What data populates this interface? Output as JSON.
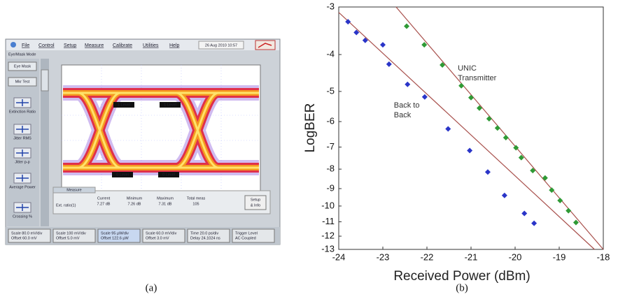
{
  "panel_labels": [
    "(a)",
    "(b)"
  ],
  "screenshot": {
    "menu": [
      "File",
      "Control",
      "Setup",
      "Measure",
      "Calibrate",
      "Utilities",
      "Help"
    ],
    "date": "26 Aug 2010 10:57",
    "mode": "Eye/Mask Mode",
    "side_buttons": [
      "Eye Mask",
      "Mkr Test"
    ],
    "measurements": [
      "Extinction Ratio",
      "Jitter RMS",
      "Jitter p-p",
      "Average Power",
      "Crossing %"
    ],
    "level_markers": [
      "1 Level",
      "1 Level",
      "0 Level",
      "0 Level"
    ],
    "measure_tab": "Measure",
    "measure_row": "Ext. ratio(1)",
    "measure_columns": [
      {
        "header": "Current",
        "value": "7.27 dB"
      },
      {
        "header": "Minimum",
        "value": "7.26 dB"
      },
      {
        "header": "Maximum",
        "value": "7.31 dB"
      },
      {
        "header": "Total meas",
        "value": "105"
      }
    ],
    "setup_button": [
      "Setup",
      "& Info"
    ],
    "status": [
      [
        "Scale 80.0 mV/div",
        "Offset 60.0 mV"
      ],
      [
        "Scale 100 mV/div",
        "Offset 5.0 mV"
      ],
      [
        "Scale 95 µW/div",
        "Offset 122.6 µW"
      ],
      [
        "Scale 60.0 mV/div",
        "Offset 3.0 mV"
      ],
      [
        "Time 20.0 ps/div",
        "Delay 24.1024 ns"
      ],
      [
        "Trigger Level",
        "AC Coupled"
      ]
    ]
  },
  "chart_data": {
    "type": "scatter",
    "x_label": "Received Power (dBm)",
    "y_label": "LogBER",
    "xlim": [
      -24,
      -18
    ],
    "xticks": [
      -24,
      -23,
      -22,
      -21,
      -20,
      -19,
      -18
    ],
    "ylim": [
      -3,
      -13
    ],
    "yticks": [
      -3,
      -4,
      -5,
      -6,
      -7,
      -8,
      -9,
      -10,
      -11,
      -12,
      -13
    ],
    "yscale": "log-magnitude",
    "series": [
      {
        "color": "#2a35c8",
        "x": [
          -23.79,
          -23.6,
          -23.4,
          -23.0,
          -22.86,
          -22.44,
          -22.05,
          -21.52,
          -21.03,
          -20.62,
          -20.24,
          -19.79,
          -19.57
        ],
        "values": [
          -3.28,
          -3.5,
          -3.67,
          -3.77,
          -4.24,
          -4.79,
          -5.17,
          -6.27,
          -7.15,
          -8.14,
          -9.38,
          -10.46,
          -11.1
        ]
      },
      {
        "color": "#2f9a35",
        "x": [
          -22.46,
          -22.06,
          -21.65,
          -21.22,
          -21.0,
          -20.81,
          -20.59,
          -20.4,
          -20.21,
          -19.98,
          -19.86,
          -19.6,
          -19.32,
          -19.17,
          -18.98,
          -18.79,
          -18.62
        ],
        "values": [
          -3.37,
          -3.77,
          -4.26,
          -4.83,
          -5.19,
          -5.53,
          -5.9,
          -6.24,
          -6.61,
          -7.03,
          -7.46,
          -8.07,
          -8.44,
          -9.08,
          -9.67,
          -10.29,
          -11.05
        ]
      }
    ],
    "trendlines": [
      {
        "color": "#a8504c",
        "x": [
          -24,
          -18.2
        ],
        "values": [
          -3.1,
          -13
        ]
      },
      {
        "color": "#a8504c",
        "x": [
          -22.7,
          -18
        ],
        "values": [
          -3,
          -13
        ]
      }
    ],
    "annotations": [
      {
        "lines": [
          "UNIC",
          "Transmitter"
        ],
        "x": -21.3,
        "y": -4.35
      },
      {
        "lines": [
          "Back to",
          "Back"
        ],
        "x": -22.75,
        "y": -5.45
      }
    ]
  }
}
